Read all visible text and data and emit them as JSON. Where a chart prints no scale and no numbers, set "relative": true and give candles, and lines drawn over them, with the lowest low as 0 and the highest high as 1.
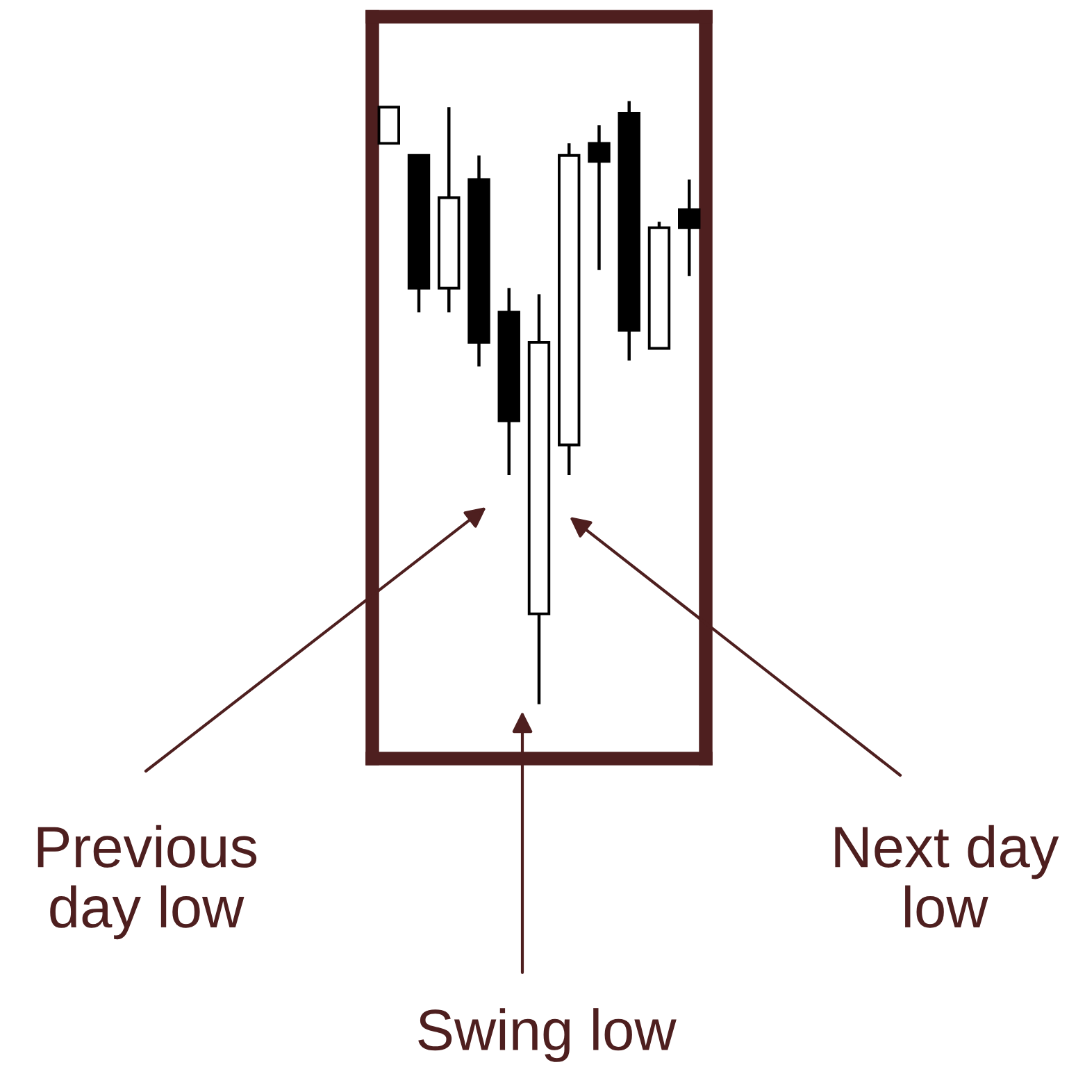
{
  "chart_data": {
    "type": "candlestick",
    "relative": true,
    "categories": [
      null,
      null,
      null,
      null,
      null,
      null,
      null,
      null,
      null,
      null,
      null
    ],
    "ohlc": [
      [
        0.93,
        0.99,
        0.93,
        0.99
      ],
      [
        0.91,
        0.91,
        0.65,
        0.69
      ],
      [
        0.69,
        0.99,
        0.65,
        0.84
      ],
      [
        0.87,
        0.91,
        0.56,
        0.6
      ],
      [
        0.65,
        0.69,
        0.38,
        0.47
      ],
      [
        0.15,
        0.68,
        0.0,
        0.6
      ],
      [
        0.43,
        0.93,
        0.38,
        0.91
      ],
      [
        0.93,
        0.96,
        0.72,
        0.9
      ],
      [
        0.98,
        1.0,
        0.57,
        0.62
      ],
      [
        0.59,
        0.8,
        0.59,
        0.79
      ],
      [
        0.82,
        0.87,
        0.71,
        0.79
      ]
    ],
    "annotations": [
      "Previous\nday low",
      "Swing low",
      "Next day\nlow"
    ]
  }
}
